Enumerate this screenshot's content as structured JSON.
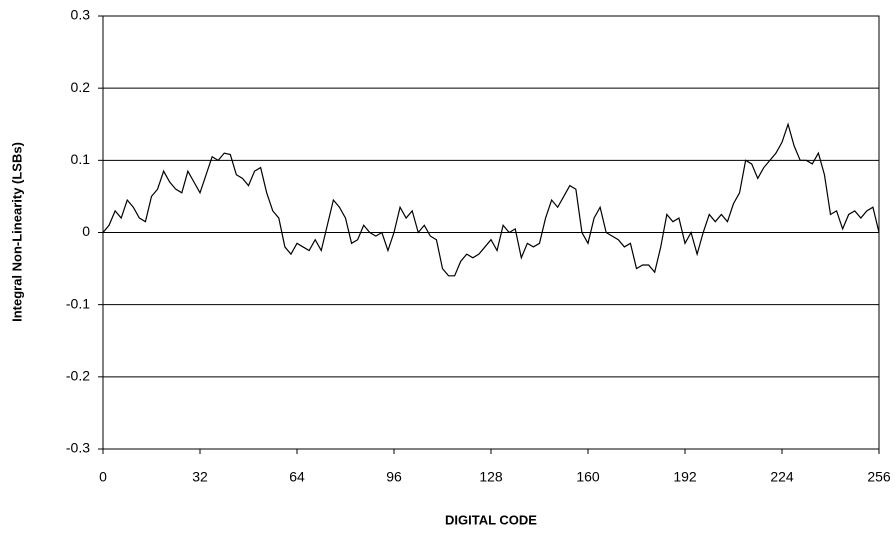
{
  "chart_data": {
    "type": "line",
    "ylabel": "Integral Non-Linearity (LSBs)",
    "xlabel": "DIGITAL CODE",
    "x": [
      0,
      2,
      4,
      6,
      8,
      10,
      12,
      14,
      16,
      18,
      20,
      22,
      24,
      26,
      28,
      30,
      32,
      34,
      36,
      38,
      40,
      42,
      44,
      46,
      48,
      50,
      52,
      54,
      56,
      58,
      60,
      62,
      64,
      66,
      68,
      70,
      72,
      74,
      76,
      78,
      80,
      82,
      84,
      86,
      88,
      90,
      92,
      94,
      96,
      98,
      100,
      102,
      104,
      106,
      108,
      110,
      112,
      114,
      116,
      118,
      120,
      122,
      124,
      126,
      128,
      130,
      132,
      134,
      136,
      138,
      140,
      142,
      144,
      146,
      148,
      150,
      152,
      154,
      156,
      158,
      160,
      162,
      164,
      166,
      168,
      170,
      172,
      174,
      176,
      178,
      180,
      182,
      184,
      186,
      188,
      190,
      192,
      194,
      196,
      198,
      200,
      202,
      204,
      206,
      208,
      210,
      212,
      214,
      216,
      218,
      220,
      222,
      224,
      226,
      228,
      230,
      232,
      234,
      236,
      238,
      240,
      242,
      244,
      246,
      248,
      250,
      252,
      254,
      256
    ],
    "series": [
      {
        "color": "#000000",
        "values": [
          0,
          0.01,
          0.03,
          0.02,
          0.045,
          0.035,
          0.02,
          0.015,
          0.05,
          0.06,
          0.085,
          0.07,
          0.06,
          0.055,
          0.085,
          0.07,
          0.055,
          0.08,
          0.105,
          0.1,
          0.11,
          0.108,
          0.08,
          0.075,
          0.065,
          0.085,
          0.09,
          0.055,
          0.03,
          0.02,
          -0.02,
          -0.03,
          -0.015,
          -0.02,
          -0.025,
          -0.01,
          -0.025,
          0.01,
          0.045,
          0.035,
          0.02,
          -0.015,
          -0.01,
          0.01,
          0,
          -0.005,
          0,
          -0.025,
          0,
          0.035,
          0.02,
          0.03,
          0,
          0.01,
          -0.005,
          -0.01,
          -0.05,
          -0.06,
          -0.06,
          -0.04,
          -0.03,
          -0.035,
          -0.03,
          -0.02,
          -0.01,
          -0.025,
          0.01,
          0,
          0.005,
          -0.035,
          -0.015,
          -0.02,
          -0.015,
          0.02,
          0.045,
          0.035,
          0.05,
          0.065,
          0.06,
          0,
          -0.015,
          0.02,
          0.035,
          0,
          -0.005,
          -0.01,
          -0.02,
          -0.015,
          -0.05,
          -0.045,
          -0.045,
          -0.055,
          -0.02,
          0.025,
          0.015,
          0.02,
          -0.015,
          0,
          -0.03,
          0,
          0.025,
          0.015,
          0.025,
          0.015,
          0.04,
          0.055,
          0.1,
          0.095,
          0.075,
          0.09,
          0.1,
          0.11,
          0.125,
          0.15,
          0.12,
          0.1,
          0.1,
          0.095,
          0.11,
          0.08,
          0.025,
          0.03,
          0.005,
          0.025,
          0.03,
          0.02,
          0.03,
          0.035,
          0
        ]
      }
    ],
    "xlim": [
      0,
      256
    ],
    "xticks": [
      0,
      32,
      64,
      96,
      128,
      160,
      192,
      224,
      256
    ],
    "ylim": [
      -0.3,
      0.3
    ],
    "yticks": [
      -0.3,
      -0.2,
      -0.1,
      0,
      0.1,
      0.2,
      0.3
    ],
    "grid": true
  }
}
